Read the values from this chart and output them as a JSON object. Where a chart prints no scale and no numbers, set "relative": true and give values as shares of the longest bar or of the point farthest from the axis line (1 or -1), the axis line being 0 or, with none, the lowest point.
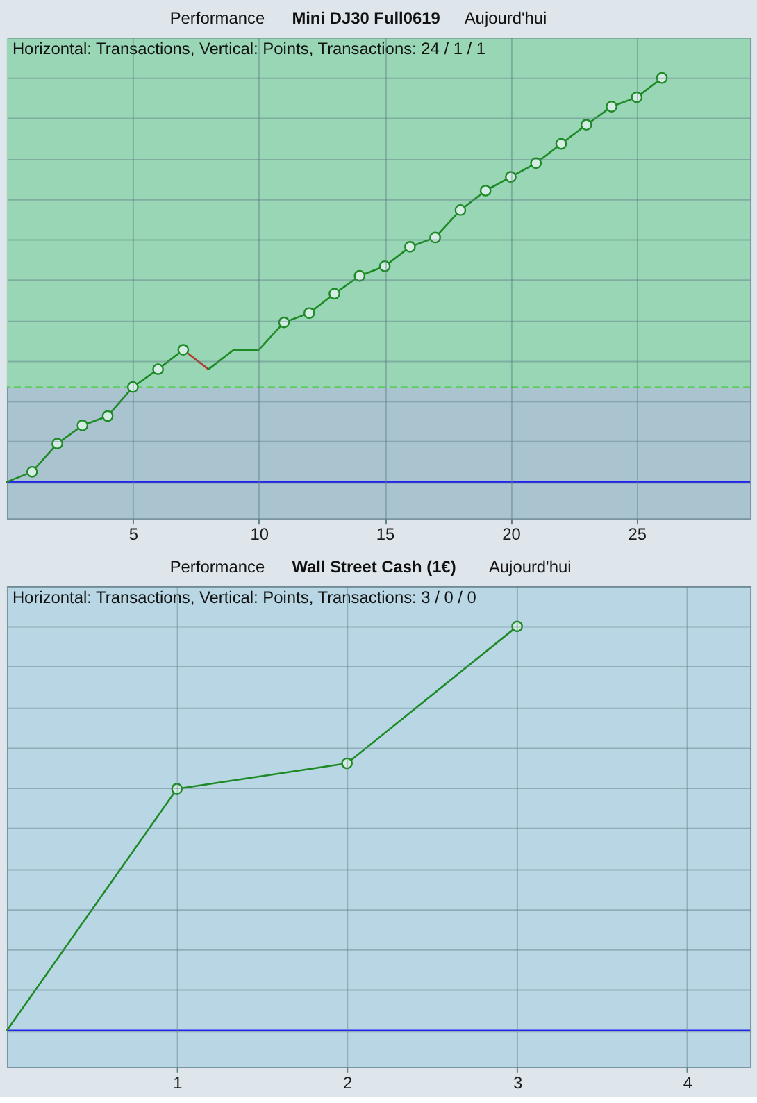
{
  "chart_data": [
    {
      "type": "line",
      "title": "Mini DJ30 Full0619",
      "subtitle": "Horizontal: Transactions, Vertical: Points, Transactions: 24 / 1 / 1",
      "annotations": [
        "Performance",
        "Aujourd'hui"
      ],
      "relative": true,
      "xlim": [
        0,
        29.5
      ],
      "xticks": [
        5,
        10,
        15,
        20,
        25
      ],
      "grid": true,
      "series": [
        {
          "type": "line",
          "color": "#1e8a26",
          "x": [
            0,
            1,
            2,
            3,
            4,
            5,
            6,
            7
          ],
          "values": [
            0,
            0.025,
            0.095,
            0.14,
            0.163,
            0.235,
            0.279,
            0.327
          ]
        },
        {
          "type": "line",
          "color": "#b23a30",
          "x": [
            7,
            8
          ],
          "values": [
            0.327,
            0.279
          ]
        },
        {
          "type": "line",
          "color": "#1e8a26",
          "x": [
            8,
            9,
            10,
            11,
            12,
            13,
            14,
            15,
            16,
            17,
            18,
            19,
            20,
            21,
            22,
            23,
            24,
            25,
            26
          ],
          "values": [
            0.279,
            0.327,
            0.327,
            0.395,
            0.418,
            0.466,
            0.51,
            0.534,
            0.582,
            0.605,
            0.673,
            0.721,
            0.755,
            0.789,
            0.837,
            0.884,
            0.929,
            0.952,
            1
          ]
        },
        {
          "type": "scatter",
          "color": "#1e8a26",
          "marker": "circle",
          "x": [
            1,
            2,
            3,
            4,
            5,
            6,
            7,
            11,
            12,
            13,
            14,
            15,
            16,
            17,
            18,
            19,
            20,
            21,
            22,
            23,
            24,
            25,
            26
          ],
          "values": [
            0.025,
            0.095,
            0.14,
            0.163,
            0.235,
            0.279,
            0.327,
            0.395,
            0.418,
            0.466,
            0.51,
            0.534,
            0.582,
            0.605,
            0.673,
            0.721,
            0.755,
            0.789,
            0.837,
            0.884,
            0.929,
            0.952,
            1
          ]
        }
      ],
      "ref_lines": [
        {
          "axis": "y",
          "value": 0,
          "color": "#2424f0",
          "line_style": "solid"
        },
        {
          "axis": "y",
          "value": 0.235,
          "color": "#5ccc5c",
          "line_style": "dashed"
        }
      ],
      "bands": [
        {
          "axis": "y",
          "from": 0.235,
          "to": 1.1,
          "color": "#98d6b5"
        }
      ]
    },
    {
      "type": "line",
      "title": "Wall Street Cash (1€)",
      "subtitle": "Horizontal: Transactions, Vertical: Points, Transactions: 3 / 0 / 0",
      "annotations": [
        "Performance",
        "Aujourd'hui"
      ],
      "relative": true,
      "xlim": [
        0,
        4.37
      ],
      "xticks": [
        1,
        2,
        3,
        4
      ],
      "grid": true,
      "series": [
        {
          "type": "line",
          "color": "#1e8a26",
          "x": [
            0,
            1,
            2,
            3
          ],
          "values": [
            0,
            0.598,
            0.661,
            1
          ]
        },
        {
          "type": "scatter",
          "color": "#1e8a26",
          "marker": "circle",
          "x": [
            1,
            2,
            3
          ],
          "values": [
            0.598,
            0.661,
            1
          ]
        }
      ],
      "ref_lines": [
        {
          "axis": "y",
          "value": 0,
          "color": "#2424f0",
          "line_style": "solid"
        }
      ]
    }
  ]
}
